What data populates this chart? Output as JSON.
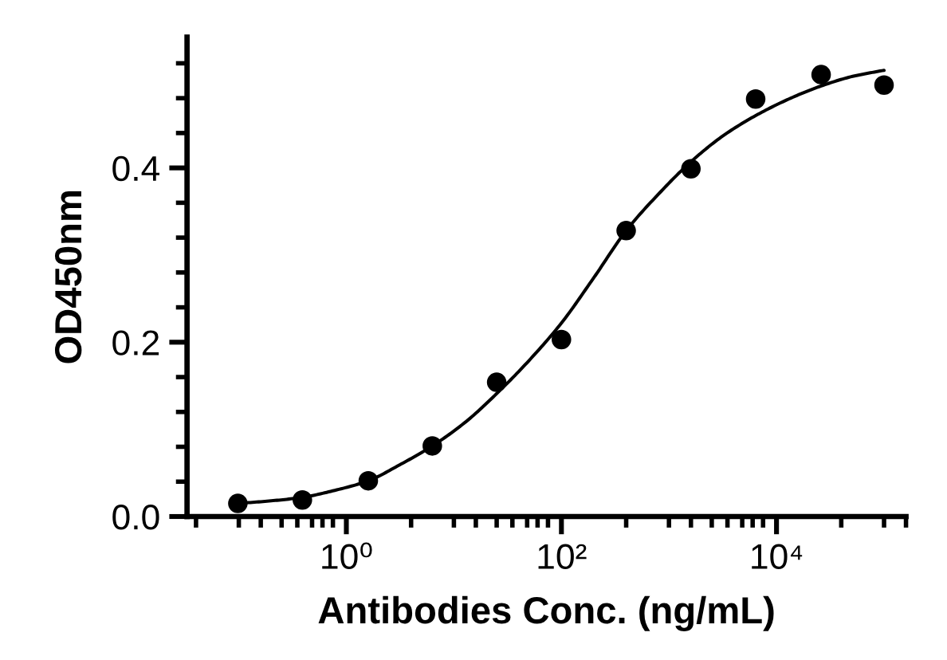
{
  "chart_data": {
    "type": "scatter",
    "xlabel": "Antibodies Conc. (ng/mL)",
    "ylabel": "OD450nm",
    "log": "x",
    "xlim": [
      0.033,
      160000
    ],
    "ylim": [
      0,
      0.55
    ],
    "xticks": [
      {
        "value": 0.04,
        "label": null
      },
      {
        "value": 0.1,
        "label": null
      },
      {
        "value": 0.16,
        "label": null
      },
      {
        "value": 0.25,
        "label": null
      },
      {
        "value": 0.35,
        "label": null
      },
      {
        "value": 0.48,
        "label": null
      },
      {
        "value": 0.6,
        "label": null
      },
      {
        "value": 0.75,
        "label": null
      },
      {
        "value": 1,
        "label": "10⁰"
      },
      {
        "value": 4,
        "label": null
      },
      {
        "value": 10,
        "label": null
      },
      {
        "value": 16,
        "label": null
      },
      {
        "value": 25,
        "label": null
      },
      {
        "value": 35,
        "label": null
      },
      {
        "value": 48,
        "label": null
      },
      {
        "value": 60,
        "label": null
      },
      {
        "value": 75,
        "label": null
      },
      {
        "value": 100,
        "label": "10²"
      },
      {
        "value": 400,
        "label": null
      },
      {
        "value": 1000,
        "label": null
      },
      {
        "value": 1600,
        "label": null
      },
      {
        "value": 2500,
        "label": null
      },
      {
        "value": 3500,
        "label": null
      },
      {
        "value": 4800,
        "label": null
      },
      {
        "value": 6000,
        "label": null
      },
      {
        "value": 7500,
        "label": null
      },
      {
        "value": 10000,
        "label": "10⁴"
      },
      {
        "value": 40000,
        "label": null
      },
      {
        "value": 100000,
        "label": null
      },
      {
        "value": 160000,
        "label": null
      }
    ],
    "yticks": [
      {
        "value": 0,
        "label": "0.0"
      },
      {
        "value": 0.04,
        "label": null
      },
      {
        "value": 0.08,
        "label": null
      },
      {
        "value": 0.12,
        "label": null
      },
      {
        "value": 0.16,
        "label": null
      },
      {
        "value": 0.2,
        "label": "0.2"
      },
      {
        "value": 0.24,
        "label": null
      },
      {
        "value": 0.28,
        "label": null
      },
      {
        "value": 0.32,
        "label": null
      },
      {
        "value": 0.36,
        "label": null
      },
      {
        "value": 0.4,
        "label": "0.4"
      },
      {
        "value": 0.44,
        "label": null
      },
      {
        "value": 0.48,
        "label": null
      },
      {
        "value": 0.52,
        "label": null
      }
    ],
    "series": [
      {
        "marker": "circle",
        "color": "#000000",
        "x": [
          0.098,
          0.39,
          1.6,
          6.3,
          25,
          100,
          400,
          1600,
          6400,
          26000,
          100000
        ],
        "values": [
          0.015,
          0.019,
          0.041,
          0.081,
          0.154,
          0.203,
          0.328,
          0.399,
          0.479,
          0.507,
          0.495
        ]
      },
      {
        "type": "line",
        "line_style": "solid",
        "color": "#000000",
        "x": [
          0.098,
          0.2,
          0.39,
          0.78,
          1.6,
          3.1,
          6.3,
          13,
          25,
          50,
          100,
          200,
          400,
          800,
          1600,
          3200,
          6400,
          13000,
          26000,
          51000,
          100000
        ],
        "values": [
          0.015,
          0.018,
          0.022,
          0.03,
          0.041,
          0.059,
          0.081,
          0.109,
          0.141,
          0.179,
          0.222,
          0.274,
          0.328,
          0.37,
          0.407,
          0.437,
          0.46,
          0.479,
          0.494,
          0.505,
          0.512
        ]
      }
    ]
  }
}
